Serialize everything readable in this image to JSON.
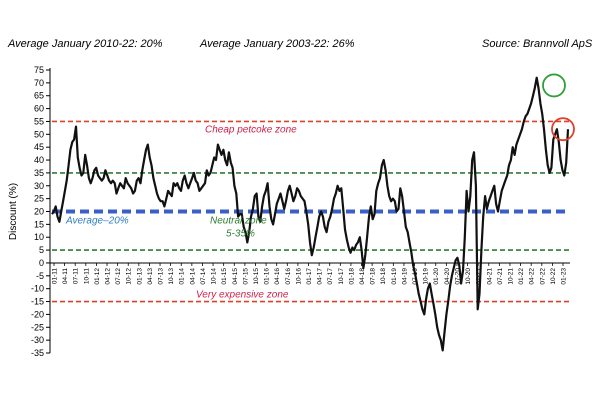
{
  "header": {
    "avg_2010_22": "Average January 2010-22: 20%",
    "avg_2003_22": "Average January 2003-22: 26%",
    "source": "Source:  Brannvoll ApS"
  },
  "chart_data": {
    "type": "line",
    "ylabel": "Discount (%)",
    "ylim": [
      -35,
      75
    ],
    "ytick_step": 5,
    "x_tick_labels": [
      "01-11",
      "04-11",
      "07-11",
      "10-11",
      "01-12",
      "04-12",
      "07-12",
      "10-12",
      "01-13",
      "04-13",
      "07-13",
      "10-13",
      "01-14",
      "04-14",
      "07-14",
      "10-14",
      "01-15",
      "04-15",
      "07-15",
      "10-15",
      "01-16",
      "04-16",
      "07-16",
      "10-16",
      "01-17",
      "04-17",
      "07-17",
      "10-17",
      "01-18",
      "04-18",
      "07-18",
      "10-18",
      "01-19",
      "04-19",
      "07-19",
      "10-19",
      "01-20",
      "04-20",
      "07-20",
      "10-20",
      "01-21",
      "04-21",
      "07-21",
      "10-21",
      "01-22",
      "04-22",
      "07-22",
      "10-22",
      "01-23"
    ],
    "series": [
      {
        "color": "#111111",
        "values": [
          19,
          20,
          22,
          18,
          16,
          20,
          24,
          28,
          32,
          38,
          44,
          47,
          48,
          53,
          41,
          37,
          34,
          35,
          42,
          38,
          33,
          31,
          33,
          36,
          37,
          34,
          33,
          32,
          33,
          36,
          34,
          32,
          31,
          32,
          31,
          27,
          29,
          31,
          30,
          29,
          33,
          31,
          30,
          29,
          27,
          28,
          32,
          33,
          31,
          36,
          40,
          44,
          46,
          41,
          38,
          33,
          30,
          27,
          25,
          24,
          24,
          22,
          25,
          28,
          27,
          26,
          31,
          30,
          31,
          29,
          28,
          32,
          34,
          31,
          29,
          31,
          33,
          35,
          32,
          31,
          28,
          29,
          30,
          31,
          36,
          34,
          35,
          38,
          41,
          40,
          46,
          44,
          42,
          44,
          40,
          38,
          43,
          39,
          37,
          30,
          27,
          18,
          19,
          19,
          14,
          12,
          8,
          12,
          18,
          21,
          26,
          27,
          18,
          16,
          22,
          26,
          28,
          31,
          22,
          17,
          15,
          19,
          23,
          25,
          27,
          24,
          21,
          24,
          28,
          30,
          27,
          24,
          26,
          29,
          28,
          26,
          25,
          24,
          20,
          15,
          8,
          3,
          6,
          10,
          14,
          18,
          20,
          18,
          14,
          12,
          16,
          18,
          21,
          25,
          27,
          30,
          28,
          29,
          21,
          13,
          9,
          6,
          4,
          6,
          5,
          7,
          8,
          10,
          5,
          -2,
          3,
          10,
          18,
          22,
          17,
          19,
          28,
          31,
          33,
          38,
          40,
          36,
          30,
          26,
          24,
          25,
          24,
          20,
          21,
          29,
          26,
          20,
          14,
          12,
          8,
          4,
          -1,
          -4,
          -8,
          -12,
          -15,
          -18,
          -20,
          -14,
          -10,
          -8,
          -12,
          -16,
          -20,
          -25,
          -28,
          -30,
          -34,
          -27,
          -20,
          -15,
          -9,
          -5,
          -2,
          1,
          2,
          -1,
          -8,
          -3,
          10,
          28,
          20,
          26,
          40,
          43,
          30,
          -18,
          -12,
          5,
          18,
          26,
          21,
          24,
          26,
          28,
          30,
          23,
          20,
          24,
          28,
          30,
          32,
          34,
          38,
          40,
          45,
          42,
          46,
          48,
          50,
          52,
          55,
          57,
          58,
          60,
          62,
          65,
          68,
          72,
          68,
          62,
          58,
          52,
          44,
          38,
          35,
          37,
          48,
          50,
          52,
          47,
          40,
          36,
          34,
          39,
          52
        ]
      }
    ],
    "reference_lines": [
      {
        "value": 55,
        "label": "Cheap petcoke zone",
        "color": "#e0402a",
        "label_color": "#d0204a",
        "style": "dashed"
      },
      {
        "value": 35,
        "label": "",
        "color": "#2e7d32",
        "style": "dashed"
      },
      {
        "value": 20,
        "label": "Average–20%",
        "color": "#3a5fc6",
        "label_color": "#2e7fc0",
        "style": "dashed"
      },
      {
        "value": 5,
        "label": "",
        "color": "#2e7d32",
        "style": "dashed"
      },
      {
        "value": -15,
        "label": "Very expensive zone",
        "color": "#e0402a",
        "label_color": "#d0204a",
        "style": "dashed"
      }
    ],
    "annotations": [
      {
        "text": "Neutral zone",
        "color": "#2e7d32"
      },
      {
        "text": "5-35%",
        "color": "#2e7d32"
      }
    ],
    "highlights": [
      {
        "index_fraction": 0.987,
        "value": 69,
        "color": "#2e9e3a"
      },
      {
        "index_fraction": 1.05,
        "value": 52,
        "color": "#e0402a"
      }
    ]
  }
}
